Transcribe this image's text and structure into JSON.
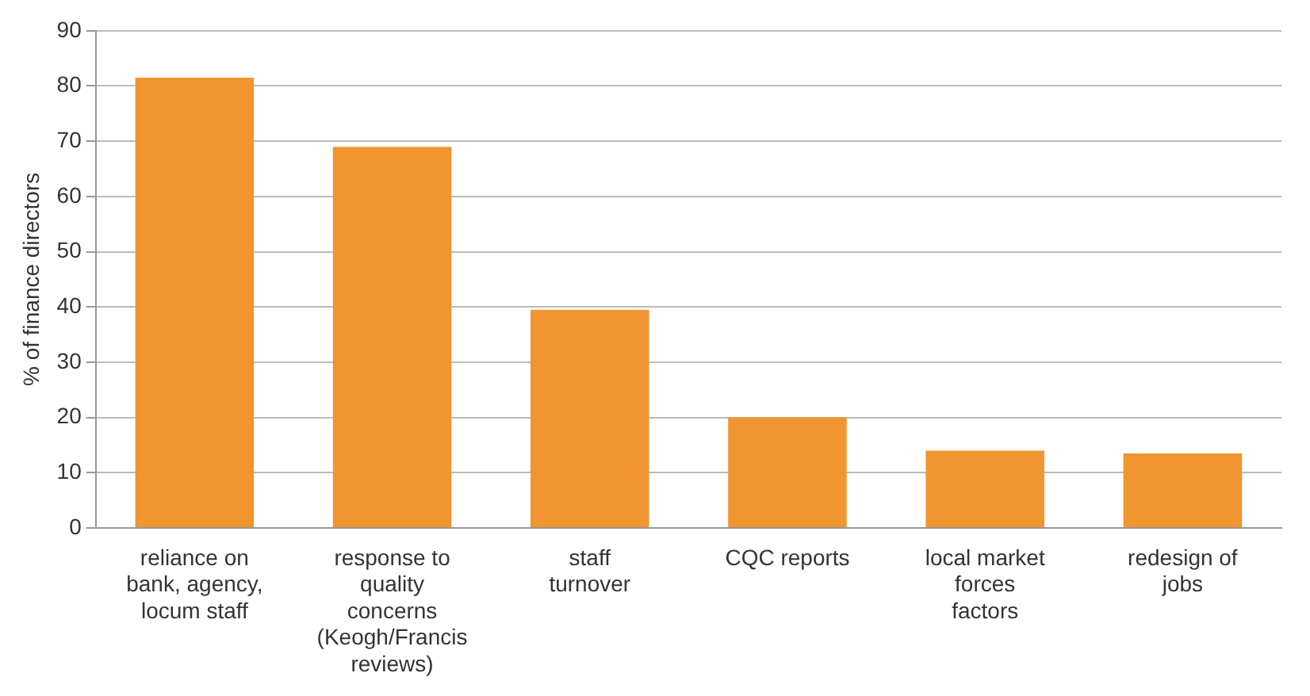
{
  "chart_data": {
    "type": "bar",
    "ylabel": "% of finance directors",
    "categories": [
      "reliance on bank, agency, locum staff",
      "response to quality concerns (Keogh/Francis reviews)",
      "staff turnover",
      "CQC reports",
      "local market forces factors",
      "redesign of jobs"
    ],
    "values": [
      81.5,
      69,
      39.5,
      20,
      14,
      13.5
    ],
    "color": "#f0952f",
    "ylim": [
      0,
      90
    ],
    "yticks": [
      0,
      10,
      20,
      30,
      40,
      50,
      60,
      70,
      80,
      90
    ],
    "grid": "y",
    "legend": false
  }
}
